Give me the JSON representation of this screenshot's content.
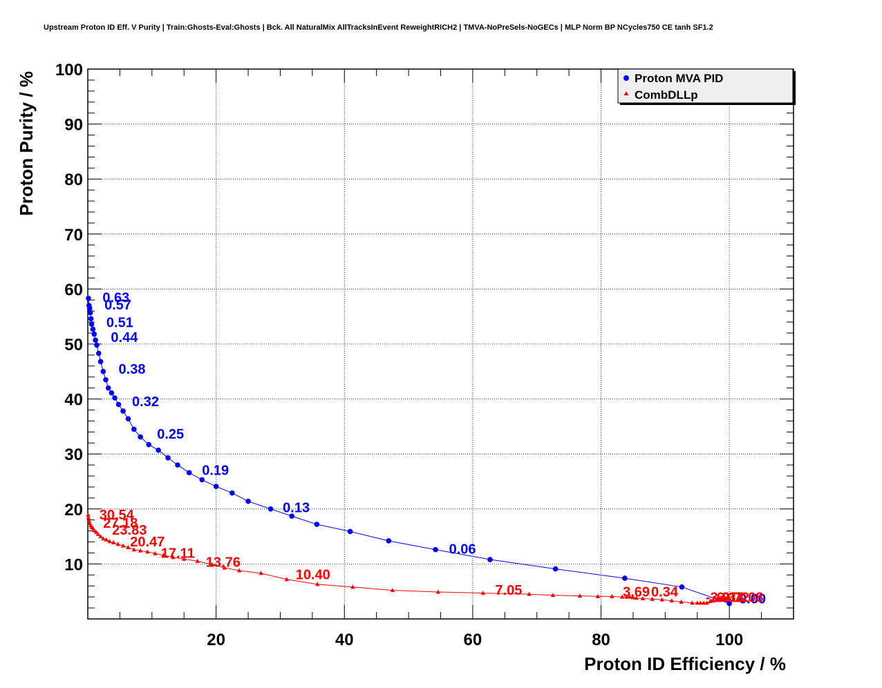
{
  "chart_data": {
    "type": "line",
    "title": "Upstream Proton ID Eff. V Purity | Train:Ghosts-Eval:Ghosts | Bck. All NaturalMix AllTracksInEvent ReweightRICH2 | TMVA-NoPreSels-NoGECs | MLP Norm BP NCycles750 CE tanh SF1.2",
    "xlabel": "Proton ID Efficiency / %",
    "ylabel": "Proton Purity / %",
    "xlim": [
      0,
      110
    ],
    "ylim": [
      0,
      100
    ],
    "x_ticks": [
      20,
      40,
      60,
      80,
      100
    ],
    "y_ticks": [
      10,
      20,
      30,
      40,
      50,
      60,
      70,
      80,
      90,
      100
    ],
    "grid": true,
    "legend_position": "top-right",
    "colors": {
      "mva": "#0000ff",
      "dll": "#ff0000"
    },
    "series": [
      {
        "name": "Proton MVA PID",
        "marker": "circle",
        "color": "#0000ff",
        "x": [
          0.1,
          0.2,
          0.3,
          0.4,
          0.5,
          0.6,
          0.8,
          1.0,
          1.2,
          1.4,
          1.7,
          2.0,
          2.4,
          2.8,
          3.2,
          3.7,
          4.2,
          4.8,
          5.5,
          6.3,
          7.2,
          8.2,
          9.5,
          11.0,
          12.5,
          14.0,
          15.8,
          17.8,
          20.0,
          22.5,
          25.0,
          28.5,
          31.8,
          35.7,
          40.9,
          46.9,
          54.2,
          62.7,
          72.9,
          83.7,
          92.6,
          100.0
        ],
        "y": [
          58.3,
          57.0,
          56.5,
          55.7,
          54.6,
          53.6,
          52.7,
          51.8,
          50.7,
          49.8,
          48.3,
          46.8,
          45.0,
          43.5,
          42.0,
          41.1,
          40.2,
          39.0,
          37.8,
          36.4,
          34.5,
          33.1,
          31.7,
          30.7,
          29.3,
          28.0,
          26.6,
          25.3,
          24.1,
          22.9,
          21.4,
          20.0,
          18.7,
          17.2,
          15.9,
          14.2,
          12.6,
          10.8,
          9.1,
          7.4,
          5.8,
          2.8
        ],
        "point_labels": [
          {
            "text": "0.63",
            "x": 2.3,
            "y": 57.6
          },
          {
            "text": "0.57",
            "x": 2.6,
            "y": 56.3
          },
          {
            "text": "0.51",
            "x": 2.9,
            "y": 53.1
          },
          {
            "text": "0.44",
            "x": 3.6,
            "y": 50.4
          },
          {
            "text": "0.38",
            "x": 4.8,
            "y": 44.6
          },
          {
            "text": "0.32",
            "x": 6.9,
            "y": 38.7
          },
          {
            "text": "0.25",
            "x": 10.8,
            "y": 32.8
          },
          {
            "text": "0.19",
            "x": 17.8,
            "y": 26.2
          },
          {
            "text": "0.13",
            "x": 30.4,
            "y": 19.4
          },
          {
            "text": "0.06",
            "x": 56.3,
            "y": 11.9
          },
          {
            "text": "0.00",
            "x": 101.5,
            "y": 2.8
          }
        ]
      },
      {
        "name": "CombDLLp",
        "marker": "triangle",
        "color": "#ff0000",
        "x": [
          0.05,
          0.1,
          0.2,
          0.3,
          0.45,
          0.6,
          0.8,
          1.0,
          1.3,
          1.6,
          2.0,
          2.4,
          2.9,
          3.4,
          4.0,
          4.7,
          5.5,
          6.3,
          7.2,
          8.2,
          9.3,
          10.5,
          11.8,
          13.3,
          15.0,
          17.1,
          19.4,
          21.3,
          23.6,
          27.0,
          31.0,
          35.8,
          41.3,
          47.5,
          54.6,
          61.6,
          68.8,
          72.5,
          76.7,
          79.5,
          81.7,
          83.3,
          84.0,
          84.5,
          85.0,
          85.5,
          86.5,
          88.0,
          89.5,
          91.0,
          92.5,
          94.2,
          95.0,
          95.5,
          96.0,
          96.5,
          97.0,
          97.5,
          98.0,
          98.5,
          99.0,
          99.5,
          100.0
        ],
        "y": [
          18.9,
          18.4,
          17.8,
          17.4,
          17.0,
          16.7,
          16.5,
          16.1,
          15.8,
          15.4,
          15.0,
          14.6,
          14.4,
          14.1,
          13.9,
          13.6,
          13.3,
          13.0,
          12.6,
          12.4,
          12.2,
          11.9,
          11.6,
          11.2,
          10.9,
          10.5,
          9.9,
          9.3,
          8.8,
          8.3,
          7.2,
          6.3,
          5.8,
          5.2,
          4.9,
          4.7,
          4.5,
          4.3,
          4.2,
          4.1,
          4.1,
          4.0,
          4.0,
          4.0,
          3.9,
          3.8,
          3.7,
          3.6,
          3.5,
          3.3,
          3.1,
          2.9,
          2.9,
          2.9,
          2.9,
          2.9,
          3.2,
          3.3,
          3.4,
          3.5,
          3.6,
          3.7,
          3.8
        ],
        "point_labels": [
          {
            "text": "30.54",
            "x": 1.8,
            "y": 18.1
          },
          {
            "text": "27.18",
            "x": 2.4,
            "y": 16.6
          },
          {
            "text": "23.83",
            "x": 3.8,
            "y": 15.3
          },
          {
            "text": "20.47",
            "x": 6.6,
            "y": 13.2
          },
          {
            "text": "17.11",
            "x": 11.4,
            "y": 11.1
          },
          {
            "text": "13.76",
            "x": 18.4,
            "y": 9.5
          },
          {
            "text": "10.40",
            "x": 32.4,
            "y": 7.2
          },
          {
            "text": "7.05",
            "x": 63.5,
            "y": 4.4
          },
          {
            "text": "3.69",
            "x": 83.4,
            "y": 4.1
          },
          {
            "text": "0.34",
            "x": 87.8,
            "y": 4.1
          },
          {
            "text": "-3.01",
            "x": 96.3,
            "y": 3.1
          },
          {
            "text": "-6.37",
            "x": 97.3,
            "y": 3.1
          },
          {
            "text": "-9.72",
            "x": 98.2,
            "y": 3.1
          },
          {
            "text": "-13.08",
            "x": 99.2,
            "y": 3.1
          }
        ]
      }
    ]
  }
}
